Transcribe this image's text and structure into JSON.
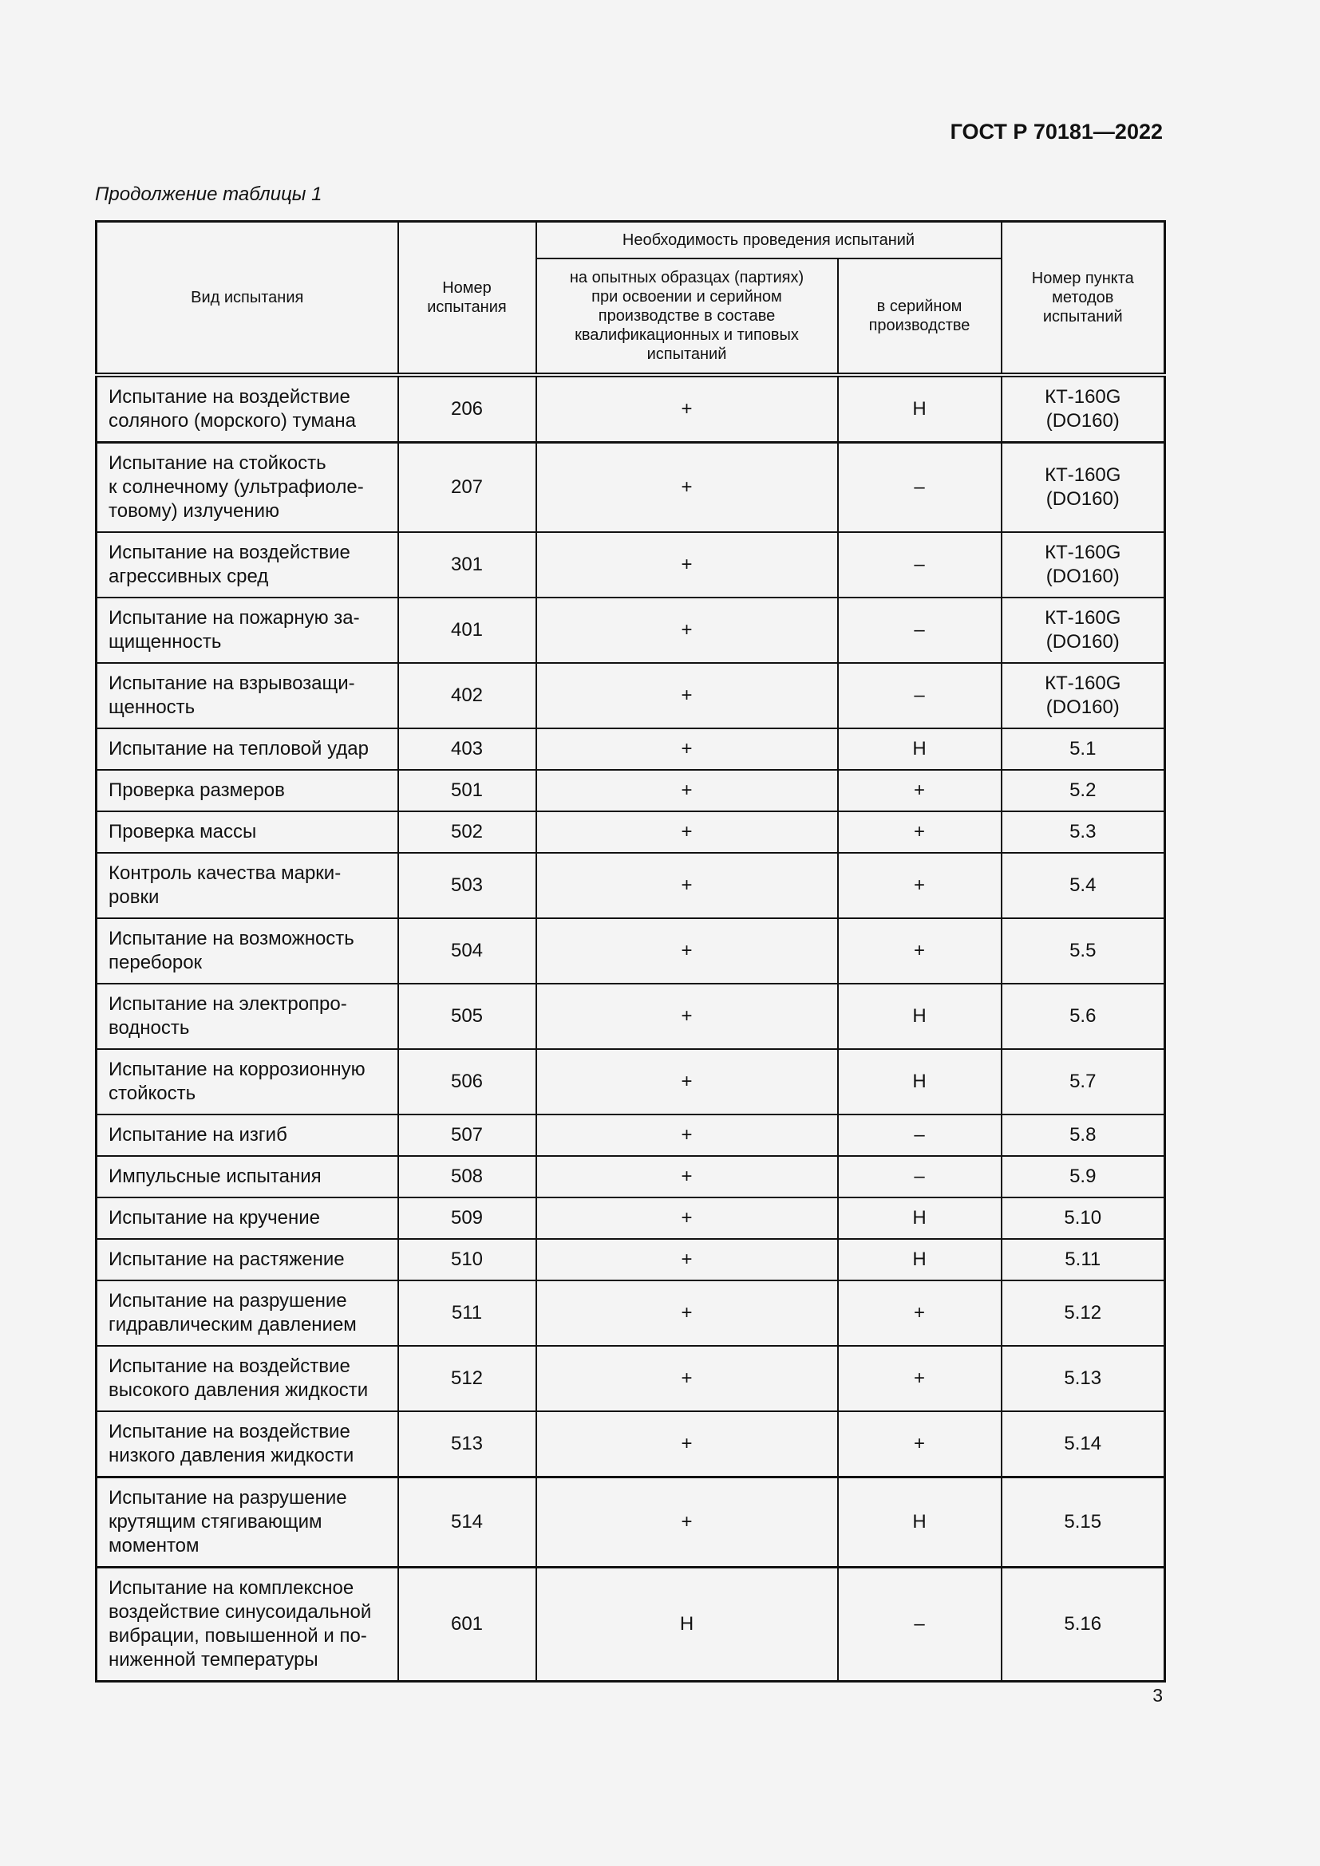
{
  "header": {
    "doc_title": "ГОСТ Р 70181—2022",
    "caption": "Продолжение таблицы 1"
  },
  "table": {
    "headers": {
      "type": "Вид испытания",
      "number": "Номер\nиспытания",
      "necessity": "Необходимость проведения испытаний",
      "prototypes": "на опытных образцах (партиях)\nпри освоении и серийном\nпроизводстве в составе\nквалификационных и типовых\nиспытаний",
      "serial": "в серийном\nпроизводстве",
      "method": "Номер пункта\nметодов\nиспытаний"
    },
    "rows": [
      {
        "type": "Испытание на воздействие\nсоляного (морского) тумана",
        "number": "206",
        "prototypes": "+",
        "serial": "Н",
        "method": "КТ-160G\n(DO160)"
      },
      {
        "type": "Испытание на стойкость\nк солнечному (ультрафиоле-\nтовому) излучению",
        "number": "207",
        "prototypes": "+",
        "serial": "–",
        "method": "КТ-160G\n(DO160)"
      },
      {
        "type": "Испытание на воздействие\nагрессивных сред",
        "number": "301",
        "prototypes": "+",
        "serial": "–",
        "method": "КТ-160G\n(DO160)"
      },
      {
        "type": "Испытание на пожарную за-\nщищенность",
        "number": "401",
        "prototypes": "+",
        "serial": "–",
        "method": "КТ-160G\n(DO160)"
      },
      {
        "type": "Испытание на взрывозащи-\nщенность",
        "number": "402",
        "prototypes": "+",
        "serial": "–",
        "method": "КТ-160G\n(DO160)"
      },
      {
        "type": "Испытание на тепловой удар",
        "number": "403",
        "prototypes": "+",
        "serial": "Н",
        "method": "5.1"
      },
      {
        "type": "Проверка размеров",
        "number": "501",
        "prototypes": "+",
        "serial": "+",
        "method": "5.2"
      },
      {
        "type": "Проверка массы",
        "number": "502",
        "prototypes": "+",
        "serial": "+",
        "method": "5.3"
      },
      {
        "type": "Контроль качества марки-\nровки",
        "number": "503",
        "prototypes": "+",
        "serial": "+",
        "method": "5.4"
      },
      {
        "type": "Испытание на возможность\nпереборок",
        "number": "504",
        "prototypes": "+",
        "serial": "+",
        "method": "5.5"
      },
      {
        "type": "Испытание на электропро-\nводность",
        "number": "505",
        "prototypes": "+",
        "serial": "Н",
        "method": "5.6"
      },
      {
        "type": "Испытание на коррозионную\nстойкость",
        "number": "506",
        "prototypes": "+",
        "serial": "Н",
        "method": "5.7"
      },
      {
        "type": "Испытание на изгиб",
        "number": "507",
        "prototypes": "+",
        "serial": "–",
        "method": "5.8"
      },
      {
        "type": "Импульсные испытания",
        "number": "508",
        "prototypes": "+",
        "serial": "–",
        "method": "5.9"
      },
      {
        "type": "Испытание на кручение",
        "number": "509",
        "prototypes": "+",
        "serial": "Н",
        "method": "5.10"
      },
      {
        "type": "Испытание на растяжение",
        "number": "510",
        "prototypes": "+",
        "serial": "Н",
        "method": "5.11"
      },
      {
        "type": "Испытание на разрушение\nгидравлическим давлением",
        "number": "511",
        "prototypes": "+",
        "serial": "+",
        "method": "5.12"
      },
      {
        "type": "Испытание на воздействие\nвысокого давления жидкости",
        "number": "512",
        "prototypes": "+",
        "serial": "+",
        "method": "5.13"
      },
      {
        "type": "Испытание на воздействие\nнизкого давления жидкости",
        "number": "513",
        "prototypes": "+",
        "serial": "+",
        "method": "5.14"
      },
      {
        "type": "Испытание на разрушение\nкрутящим стягивающим\nмоментом",
        "number": "514",
        "prototypes": "+",
        "serial": "Н",
        "method": "5.15"
      },
      {
        "type": "Испытание на комплексное\nвоздействие синусоидальной\nвибрации, повышенной и по-\nниженной температуры",
        "number": "601",
        "prototypes": "Н",
        "serial": "–",
        "method": "5.16"
      }
    ]
  },
  "footer": {
    "page_number": "3"
  }
}
